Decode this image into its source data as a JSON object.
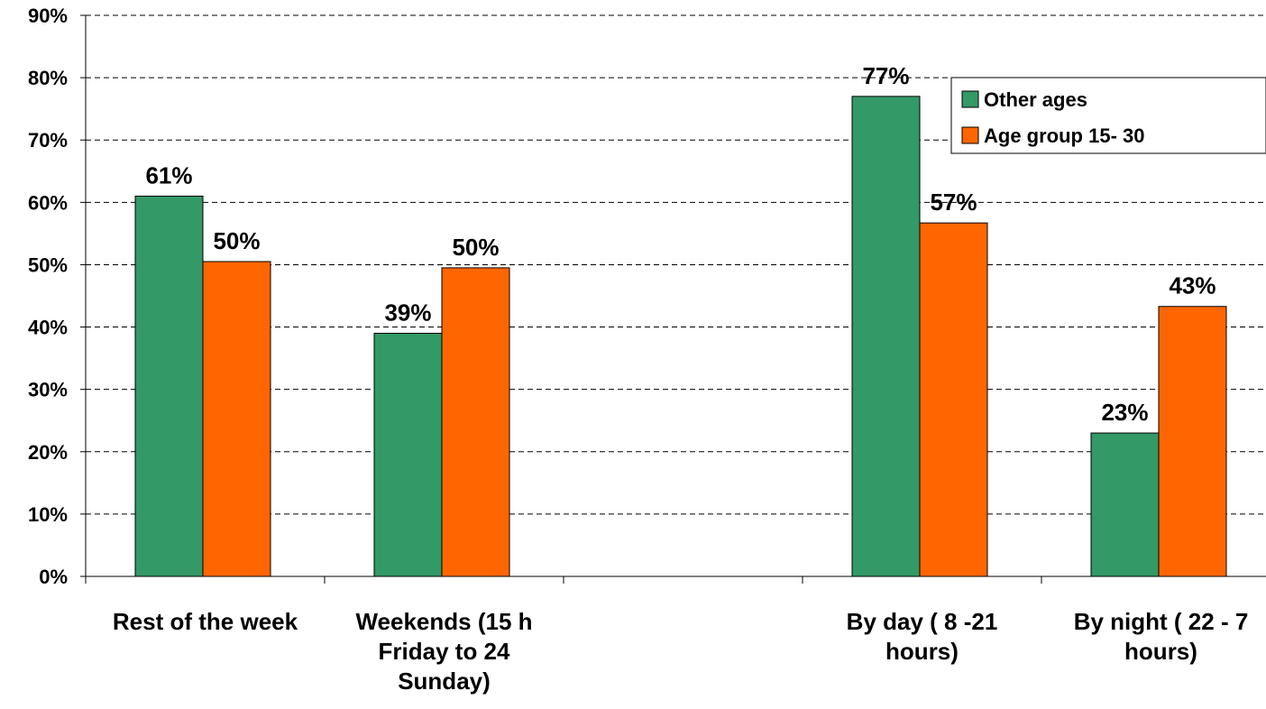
{
  "chart_data": {
    "type": "bar",
    "categories": [
      "Rest of the week",
      "Weekends (15 h Friday to 24 Sunday)",
      "",
      "By day ( 8 -21 hours)",
      "By night ( 22 - 7 hours)"
    ],
    "category_label_lines": [
      [
        "Rest of the week"
      ],
      [
        "Weekends (15 h",
        "Friday to 24",
        "Sunday)"
      ],
      [],
      [
        "By day ( 8 -21",
        "hours)"
      ],
      [
        "By night ( 22 - 7",
        "hours)"
      ]
    ],
    "series": [
      {
        "name": "Other ages",
        "color": "#339966",
        "values": [
          61,
          39,
          null,
          77,
          23
        ],
        "labels": [
          "61%",
          "39%",
          "",
          "77%",
          "23%"
        ]
      },
      {
        "name": "Age group 15- 30",
        "color": "#FF6600",
        "values": [
          50.5,
          49.5,
          null,
          56.7,
          43.3
        ],
        "labels": [
          "50%",
          "50%",
          "",
          "57%",
          "43%"
        ]
      }
    ],
    "ylim": [
      0,
      90
    ],
    "yticks": [
      "0%",
      "10%",
      "20%",
      "30%",
      "40%",
      "50%",
      "60%",
      "70%",
      "80%",
      "90%"
    ],
    "title": "",
    "xlabel": "",
    "ylabel": "",
    "grid": true,
    "legend_position": "top-right"
  }
}
